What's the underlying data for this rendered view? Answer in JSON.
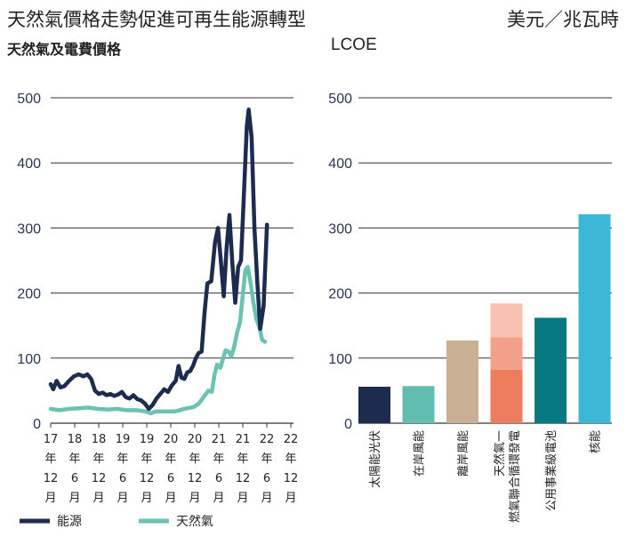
{
  "header": {
    "title": "天然氣價格走勢促進可再生能源轉型",
    "unit": "美元／兆瓦時",
    "left_subtitle": "天然氣及電費價格",
    "right_subtitle": "LCOE"
  },
  "colors": {
    "energy": "#1c2b4e",
    "gas": "#6ac1b4",
    "grid": "#333333",
    "solar": "#1c2b4e",
    "onshore": "#62bdb1",
    "offshore": "#c9b094",
    "gas_plant_1": "#ee7d5e",
    "gas_plant_2": "#f3a08a",
    "gas_plant_3": "#f7c2b2",
    "utility_battery": "#057a80",
    "nuclear": "#3db7d6"
  },
  "chart_data": [
    {
      "type": "line",
      "ylim": [
        0,
        500
      ],
      "yticks": [
        0,
        100,
        200,
        300,
        400,
        500
      ],
      "x_ticks": [
        {
          "x": 2017.917,
          "lines": [
            "17",
            "年",
            "12",
            "月"
          ]
        },
        {
          "x": 2018.417,
          "lines": [
            "18",
            "年",
            "6",
            "月"
          ]
        },
        {
          "x": 2018.917,
          "lines": [
            "18",
            "年",
            "12",
            "月"
          ]
        },
        {
          "x": 2019.417,
          "lines": [
            "19",
            "年",
            "6",
            "月"
          ]
        },
        {
          "x": 2019.917,
          "lines": [
            "19",
            "年",
            "12",
            "月"
          ]
        },
        {
          "x": 2020.417,
          "lines": [
            "20",
            "年",
            "6",
            "月"
          ]
        },
        {
          "x": 2020.917,
          "lines": [
            "20",
            "年",
            "12",
            "月"
          ]
        },
        {
          "x": 2021.417,
          "lines": [
            "21",
            "年",
            "6",
            "月"
          ]
        },
        {
          "x": 2021.917,
          "lines": [
            "21",
            "年",
            "12",
            "月"
          ]
        },
        {
          "x": 2022.417,
          "lines": [
            "22",
            "年",
            "6",
            "月"
          ]
        },
        {
          "x": 2022.917,
          "lines": [
            "22",
            "年",
            "12",
            "月"
          ]
        }
      ],
      "xlim": [
        2017.917,
        2022.917
      ],
      "legend": [
        {
          "label": "能源",
          "color_key": "energy"
        },
        {
          "label": "天然氣",
          "color_key": "gas"
        }
      ],
      "series": [
        {
          "name": "能源",
          "color_key": "energy",
          "points": [
            [
              2017.917,
              60
            ],
            [
              2017.97,
              52
            ],
            [
              2018.04,
              65
            ],
            [
              2018.12,
              55
            ],
            [
              2018.2,
              57
            ],
            [
              2018.3,
              65
            ],
            [
              2018.4,
              72
            ],
            [
              2018.5,
              75
            ],
            [
              2018.6,
              72
            ],
            [
              2018.68,
              75
            ],
            [
              2018.76,
              68
            ],
            [
              2018.84,
              50
            ],
            [
              2018.92,
              45
            ],
            [
              2019.0,
              47
            ],
            [
              2019.08,
              43
            ],
            [
              2019.16,
              45
            ],
            [
              2019.24,
              42
            ],
            [
              2019.32,
              44
            ],
            [
              2019.4,
              48
            ],
            [
              2019.48,
              40
            ],
            [
              2019.56,
              38
            ],
            [
              2019.64,
              43
            ],
            [
              2019.72,
              37
            ],
            [
              2019.8,
              35
            ],
            [
              2019.88,
              30
            ],
            [
              2019.96,
              22
            ],
            [
              2020.04,
              28
            ],
            [
              2020.12,
              38
            ],
            [
              2020.2,
              45
            ],
            [
              2020.28,
              52
            ],
            [
              2020.36,
              48
            ],
            [
              2020.44,
              58
            ],
            [
              2020.52,
              65
            ],
            [
              2020.58,
              88
            ],
            [
              2020.64,
              70
            ],
            [
              2020.7,
              68
            ],
            [
              2020.76,
              78
            ],
            [
              2020.82,
              80
            ],
            [
              2020.88,
              88
            ],
            [
              2020.94,
              100
            ],
            [
              2021.0,
              108
            ],
            [
              2021.06,
              110
            ],
            [
              2021.12,
              170
            ],
            [
              2021.18,
              215
            ],
            [
              2021.26,
              218
            ],
            [
              2021.34,
              278
            ],
            [
              2021.4,
              300
            ],
            [
              2021.46,
              250
            ],
            [
              2021.52,
              195
            ],
            [
              2021.58,
              270
            ],
            [
              2021.64,
              320
            ],
            [
              2021.7,
              245
            ],
            [
              2021.76,
              185
            ],
            [
              2021.82,
              240
            ],
            [
              2021.88,
              250
            ],
            [
              2021.94,
              350
            ],
            [
              2022.0,
              455
            ],
            [
              2022.04,
              482
            ],
            [
              2022.1,
              440
            ],
            [
              2022.16,
              300
            ],
            [
              2022.22,
              215
            ],
            [
              2022.28,
              145
            ],
            [
              2022.35,
              180
            ],
            [
              2022.42,
              305
            ]
          ]
        },
        {
          "name": "天然氣",
          "color_key": "gas",
          "points": [
            [
              2017.917,
              22
            ],
            [
              2018.1,
              20
            ],
            [
              2018.3,
              22
            ],
            [
              2018.5,
              23
            ],
            [
              2018.7,
              24
            ],
            [
              2018.9,
              22
            ],
            [
              2019.1,
              21
            ],
            [
              2019.3,
              22
            ],
            [
              2019.5,
              20
            ],
            [
              2019.7,
              20
            ],
            [
              2019.9,
              18
            ],
            [
              2020.0,
              15
            ],
            [
              2020.1,
              18
            ],
            [
              2020.3,
              18
            ],
            [
              2020.5,
              18
            ],
            [
              2020.7,
              22
            ],
            [
              2020.9,
              25
            ],
            [
              2021.0,
              30
            ],
            [
              2021.1,
              40
            ],
            [
              2021.2,
              50
            ],
            [
              2021.27,
              48
            ],
            [
              2021.33,
              75
            ],
            [
              2021.38,
              90
            ],
            [
              2021.45,
              85
            ],
            [
              2021.5,
              98
            ],
            [
              2021.56,
              112
            ],
            [
              2021.62,
              110
            ],
            [
              2021.68,
              103
            ],
            [
              2021.74,
              118
            ],
            [
              2021.8,
              140
            ],
            [
              2021.86,
              155
            ],
            [
              2021.92,
              200
            ],
            [
              2021.97,
              235
            ],
            [
              2022.02,
              240
            ],
            [
              2022.08,
              215
            ],
            [
              2022.14,
              185
            ],
            [
              2022.2,
              160
            ],
            [
              2022.26,
              148
            ],
            [
              2022.32,
              128
            ],
            [
              2022.38,
              125
            ]
          ]
        }
      ]
    },
    {
      "type": "bar",
      "ylim": [
        0,
        500
      ],
      "yticks": [
        0,
        100,
        200,
        300,
        400,
        500
      ],
      "categories": [
        "太陽能光伏",
        "在岸風能",
        "離岸風能",
        "天然氣一燃氣聯合循環發電",
        "公用事業級電池",
        "核能"
      ],
      "bars": [
        {
          "label": "太陽能光伏",
          "value": 56,
          "color_key": "solar"
        },
        {
          "label": "在岸風能",
          "value": 57,
          "color_key": "onshore"
        },
        {
          "label": "離岸風能",
          "value": 127,
          "color_key": "offshore"
        },
        {
          "label": "天然氣一燃氣聯合循環發電",
          "range": [
            0,
            184
          ],
          "stack": [
            {
              "from": 0,
              "to": 82,
              "color_key": "gas_plant_1"
            },
            {
              "from": 82,
              "to": 132,
              "color_key": "gas_plant_2"
            },
            {
              "from": 132,
              "to": 184,
              "color_key": "gas_plant_3"
            }
          ]
        },
        {
          "label": "公用事業級電池",
          "value": 162,
          "color_key": "utility_battery"
        },
        {
          "label": "核能",
          "value": 321,
          "color_key": "nuclear"
        }
      ]
    }
  ]
}
